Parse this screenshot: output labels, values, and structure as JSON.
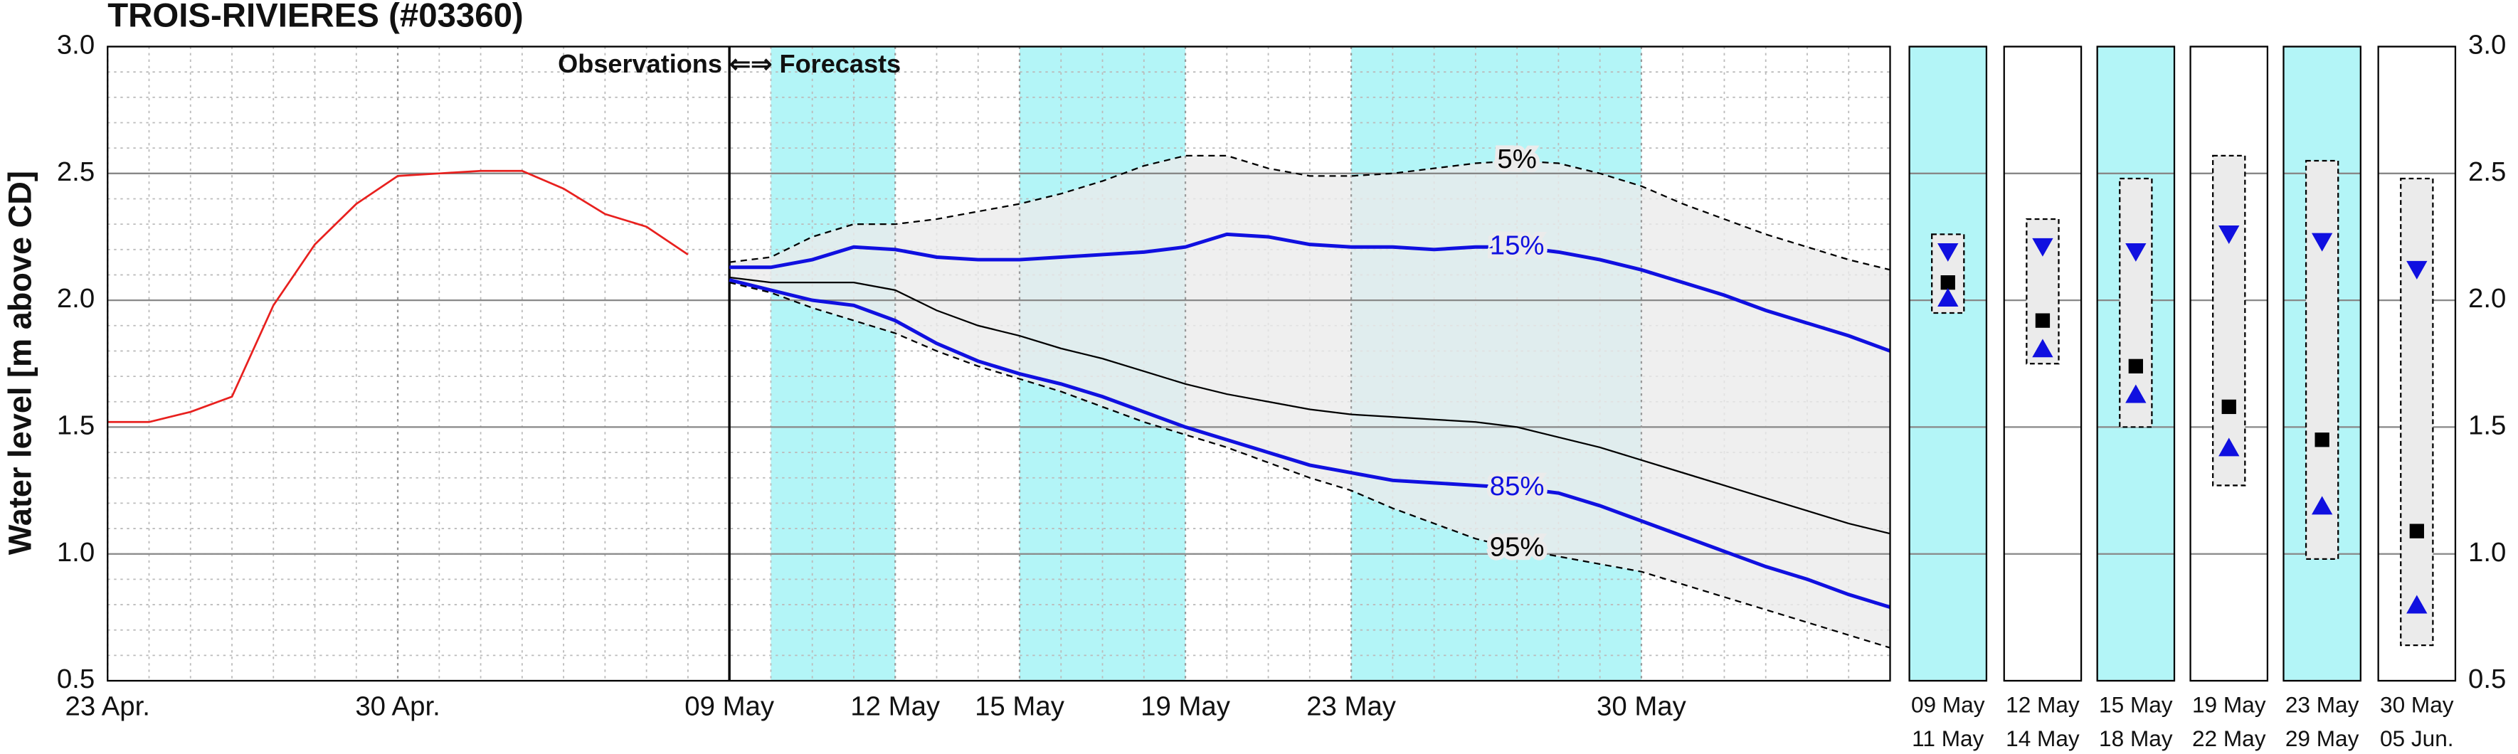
{
  "chart_data": [
    {
      "type": "line",
      "title": "TROIS-RIVIERES (#03360)",
      "annotation": "Observations ⇐⇒ Forecasts",
      "ylabel": "Water level [m above CD]",
      "xlim": [
        0,
        43
      ],
      "ylim": [
        0.5,
        3
      ],
      "xticks": [
        {
          "value": 0,
          "label": "23 Apr."
        },
        {
          "value": 7,
          "label": "30 Apr."
        },
        {
          "value": 15,
          "label": "09 May"
        },
        {
          "value": 19,
          "label": "12 May"
        },
        {
          "value": 22,
          "label": "15 May"
        },
        {
          "value": 26,
          "label": "19 May"
        },
        {
          "value": 30,
          "label": "23 May"
        },
        {
          "value": 37,
          "label": "30 May"
        }
      ],
      "yticks": [
        {
          "value": 0.5,
          "label": "0.5"
        },
        {
          "value": 1,
          "label": "1.0"
        },
        {
          "value": 1.5,
          "label": "1.5"
        },
        {
          "value": 2,
          "label": "2.0"
        },
        {
          "value": 2.5,
          "label": "2.5"
        },
        {
          "value": 3,
          "label": "3.0"
        }
      ],
      "grid": true,
      "minor_grid": true,
      "divider": 15,
      "shaded_ranges": [
        [
          16,
          19
        ],
        [
          22,
          26
        ],
        [
          30,
          37
        ]
      ],
      "shade_color": "#b3f5f7",
      "band_color": "#ebebeb",
      "band_series": [
        1,
        5
      ],
      "label_x": 34,
      "series": [
        {
          "color": "#e8201e",
          "width": 1.2,
          "dash": false,
          "x": [
            0,
            1,
            2,
            3,
            4,
            5,
            6,
            7,
            8,
            9,
            10,
            11,
            12,
            13,
            14
          ],
          "values": [
            1.52,
            1.52,
            1.56,
            1.62,
            1.98,
            2.22,
            2.38,
            2.49,
            2.5,
            2.51,
            2.51,
            2.44,
            2.34,
            2.29,
            2.18
          ]
        },
        {
          "name": "5%",
          "color": "#000000",
          "width": 1,
          "dash": true,
          "x": [
            15,
            16,
            17,
            18,
            19,
            20,
            21,
            22,
            23,
            24,
            25,
            26,
            27,
            28,
            29,
            30,
            31,
            32,
            33,
            34,
            35,
            36,
            37,
            38,
            39,
            40,
            41,
            42,
            43
          ],
          "values": [
            2.15,
            2.17,
            2.25,
            2.3,
            2.3,
            2.32,
            2.35,
            2.38,
            2.42,
            2.47,
            2.53,
            2.57,
            2.57,
            2.52,
            2.49,
            2.49,
            2.5,
            2.52,
            2.54,
            2.55,
            2.54,
            2.5,
            2.45,
            2.38,
            2.32,
            2.26,
            2.21,
            2.16,
            2.12
          ]
        },
        {
          "name": "15%",
          "color": "#1010e0",
          "width": 2.2,
          "dash": false,
          "x": [
            15,
            16,
            17,
            18,
            19,
            20,
            21,
            22,
            23,
            24,
            25,
            26,
            27,
            28,
            29,
            30,
            31,
            32,
            33,
            34,
            35,
            36,
            37,
            38,
            39,
            40,
            41,
            42,
            43
          ],
          "values": [
            2.13,
            2.13,
            2.16,
            2.21,
            2.2,
            2.17,
            2.16,
            2.16,
            2.17,
            2.18,
            2.19,
            2.21,
            2.26,
            2.25,
            2.22,
            2.21,
            2.21,
            2.2,
            2.21,
            2.21,
            2.19,
            2.16,
            2.12,
            2.07,
            2.02,
            1.96,
            1.91,
            1.86,
            1.8
          ]
        },
        {
          "color": "#000000",
          "width": 1,
          "dash": false,
          "x": [
            15,
            16,
            17,
            18,
            19,
            20,
            21,
            22,
            23,
            24,
            25,
            26,
            27,
            28,
            29,
            30,
            31,
            32,
            33,
            34,
            35,
            36,
            37,
            38,
            39,
            40,
            41,
            42,
            43
          ],
          "values": [
            2.09,
            2.07,
            2.07,
            2.07,
            2.04,
            1.96,
            1.9,
            1.86,
            1.81,
            1.77,
            1.72,
            1.67,
            1.63,
            1.6,
            1.57,
            1.55,
            1.54,
            1.53,
            1.52,
            1.5,
            1.46,
            1.42,
            1.37,
            1.32,
            1.27,
            1.22,
            1.17,
            1.12,
            1.08
          ]
        },
        {
          "name": "85%",
          "color": "#1010e0",
          "width": 2.2,
          "dash": false,
          "x": [
            15,
            16,
            17,
            18,
            19,
            20,
            21,
            22,
            23,
            24,
            25,
            26,
            27,
            28,
            29,
            30,
            31,
            32,
            33,
            34,
            35,
            36,
            37,
            38,
            39,
            40,
            41,
            42,
            43
          ],
          "values": [
            2.08,
            2.04,
            2.0,
            1.98,
            1.92,
            1.83,
            1.76,
            1.71,
            1.67,
            1.62,
            1.56,
            1.5,
            1.45,
            1.4,
            1.35,
            1.32,
            1.29,
            1.28,
            1.27,
            1.26,
            1.24,
            1.19,
            1.13,
            1.07,
            1.01,
            0.95,
            0.9,
            0.84,
            0.79
          ]
        },
        {
          "name": "95%",
          "color": "#000000",
          "width": 1,
          "dash": true,
          "x": [
            15,
            16,
            17,
            18,
            19,
            20,
            21,
            22,
            23,
            24,
            25,
            26,
            27,
            28,
            29,
            30,
            31,
            32,
            33,
            34,
            35,
            36,
            37,
            38,
            39,
            40,
            41,
            42,
            43
          ],
          "values": [
            2.07,
            2.03,
            1.97,
            1.92,
            1.87,
            1.8,
            1.74,
            1.69,
            1.64,
            1.58,
            1.52,
            1.47,
            1.42,
            1.36,
            1.3,
            1.25,
            1.18,
            1.12,
            1.06,
            1.02,
            0.99,
            0.96,
            0.93,
            0.88,
            0.83,
            0.78,
            0.73,
            0.68,
            0.63
          ]
        }
      ]
    },
    {
      "type": "range",
      "ylim": [
        0.5,
        3
      ],
      "yticks": [
        {
          "value": 0.5,
          "label": "0.5"
        },
        {
          "value": 1,
          "label": "1.0"
        },
        {
          "value": 1.5,
          "label": "1.5"
        },
        {
          "value": 2,
          "label": "2.0"
        },
        {
          "value": 2.5,
          "label": "2.5"
        },
        {
          "value": 3,
          "label": "3.0"
        }
      ],
      "categories": [
        [
          "09 May",
          "11 May"
        ],
        [
          "12 May",
          "14 May"
        ],
        [
          "15 May",
          "18 May"
        ],
        [
          "19 May",
          "22 May"
        ],
        [
          "23 May",
          "29 May"
        ],
        [
          "30 May",
          "05 Jun."
        ]
      ],
      "shaded": [
        true,
        false,
        true,
        false,
        true,
        false
      ],
      "shade_color": "#b3f5f7",
      "box_color": "#ebebeb",
      "range_low": [
        1.95,
        1.75,
        1.5,
        1.27,
        0.98,
        0.64
      ],
      "range_high": [
        2.26,
        2.32,
        2.48,
        2.57,
        2.55,
        2.48
      ],
      "series": [
        {
          "marker": "triangle-down",
          "color": "#1010e0",
          "values": [
            2.19,
            2.21,
            2.19,
            2.26,
            2.23,
            2.12
          ]
        },
        {
          "marker": "square",
          "color": "#000000",
          "values": [
            2.07,
            1.92,
            1.74,
            1.58,
            1.45,
            1.09
          ]
        },
        {
          "marker": "triangle-up",
          "color": "#1010e0",
          "values": [
            2.01,
            1.81,
            1.63,
            1.42,
            1.19,
            0.8
          ]
        }
      ]
    }
  ]
}
